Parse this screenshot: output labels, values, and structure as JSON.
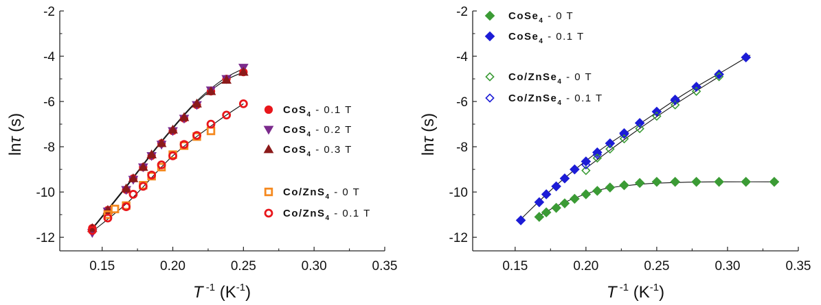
{
  "chart_data": [
    {
      "type": "scatter",
      "panel": "left",
      "xlabel": "T -1 (K-1)",
      "ylabel": "lnτ (s)",
      "xlim": [
        0.12,
        0.35
      ],
      "ylim": [
        -12.6,
        -2
      ],
      "xticks": [
        "0.15",
        "0.20",
        "0.25",
        "0.30",
        "0.35"
      ],
      "yticks": [
        "-12",
        "-10",
        "-8",
        "-6",
        "-4",
        "-2"
      ],
      "grid": false,
      "legend_position": "right",
      "series": [
        {
          "name": "CoS4 - 0.1 T",
          "color": "#e8161b",
          "marker": "circle",
          "filled": true,
          "x": [
            0.143,
            0.154,
            0.167,
            0.172,
            0.179,
            0.185,
            0.192,
            0.2,
            0.208,
            0.217,
            0.227,
            0.238,
            0.25
          ],
          "y": [
            -11.6,
            -10.8,
            -9.9,
            -9.4,
            -8.9,
            -8.4,
            -7.85,
            -7.3,
            -6.75,
            -6.15,
            -5.55,
            -5.0,
            -4.7
          ]
        },
        {
          "name": "CoS4 - 0.2 T",
          "color": "#7b2a8c",
          "marker": "triangle-down",
          "filled": true,
          "x": [
            0.143,
            0.154,
            0.167,
            0.172,
            0.179,
            0.185,
            0.192,
            0.2,
            0.208,
            0.217,
            0.227,
            0.238,
            0.25
          ],
          "y": [
            -11.8,
            -10.85,
            -9.9,
            -9.45,
            -8.9,
            -8.4,
            -7.9,
            -7.3,
            -6.75,
            -6.15,
            -5.5,
            -5.0,
            -4.5
          ]
        },
        {
          "name": "CoS4 - 0.3 T",
          "color": "#8b1a1a",
          "marker": "triangle-up",
          "filled": true,
          "x": [
            0.143,
            0.154,
            0.167,
            0.172,
            0.179,
            0.185,
            0.192,
            0.2,
            0.208,
            0.217,
            0.227,
            0.238,
            0.25
          ],
          "y": [
            -11.6,
            -10.8,
            -9.85,
            -9.4,
            -8.9,
            -8.35,
            -7.85,
            -7.25,
            -6.7,
            -6.1,
            -5.55,
            -5.05,
            -4.7
          ]
        },
        {
          "name": "Co/ZnS4 - 0 T",
          "color": "#f5891f",
          "marker": "square",
          "filled": false,
          "x": [
            0.154,
            0.159,
            0.167,
            0.179,
            0.185,
            0.192,
            0.2,
            0.208,
            0.217,
            0.227
          ],
          "y": [
            -11.0,
            -10.75,
            -10.6,
            -9.7,
            -9.3,
            -8.9,
            -8.35,
            -7.95,
            -7.55,
            -7.3
          ]
        },
        {
          "name": "Co/ZnS4 - 0.1 T",
          "color": "#e8161b",
          "marker": "circle",
          "filled": false,
          "x": [
            0.143,
            0.154,
            0.167,
            0.172,
            0.179,
            0.185,
            0.192,
            0.2,
            0.208,
            0.217,
            0.227,
            0.238,
            0.25
          ],
          "y": [
            -11.7,
            -11.15,
            -10.65,
            -10.1,
            -9.75,
            -9.25,
            -8.8,
            -8.4,
            -7.9,
            -7.5,
            -7.0,
            -6.6,
            -6.1
          ]
        }
      ],
      "fit_curves": [
        {
          "x": [
            0.143,
            0.165,
            0.19,
            0.215,
            0.235,
            0.25
          ],
          "y": [
            -11.65,
            -9.95,
            -7.95,
            -6.15,
            -5.15,
            -4.7
          ]
        },
        {
          "x": [
            0.143,
            0.165,
            0.19,
            0.215,
            0.235,
            0.25
          ],
          "y": [
            -11.6,
            -9.9,
            -7.9,
            -6.1,
            -5.05,
            -4.55
          ]
        },
        {
          "x": [
            0.143,
            0.17,
            0.2,
            0.23,
            0.25
          ],
          "y": [
            -11.75,
            -10.35,
            -8.4,
            -6.95,
            -6.1
          ]
        }
      ],
      "legend": [
        {
          "base": "CoS",
          "sub": "4",
          "rest": " - 0.1 T"
        },
        {
          "base": "CoS",
          "sub": "4",
          "rest": " - 0.2 T"
        },
        {
          "base": "CoS",
          "sub": "4",
          "rest": " - 0.3 T"
        },
        {
          "base": "Co/ZnS",
          "sub": "4",
          "rest": " - 0 T"
        },
        {
          "base": "Co/ZnS",
          "sub": "4",
          "rest": " - 0.1 T"
        }
      ]
    },
    {
      "type": "scatter",
      "panel": "right",
      "xlabel": "T -1 (K-1)",
      "ylabel": "lnτ (s)",
      "xlim": [
        0.12,
        0.35
      ],
      "ylim": [
        -12.6,
        -2
      ],
      "xticks": [
        "0.15",
        "0.20",
        "0.25",
        "0.30",
        "0.35"
      ],
      "yticks": [
        "-12",
        "-10",
        "-8",
        "-6",
        "-4",
        "-2"
      ],
      "grid": false,
      "legend_position": "top-left",
      "series": [
        {
          "name": "CoSe4 - 0 T",
          "color": "#3b9b35",
          "marker": "diamond",
          "filled": true,
          "x": [
            0.167,
            0.172,
            0.179,
            0.185,
            0.192,
            0.2,
            0.208,
            0.217,
            0.227,
            0.238,
            0.25,
            0.263,
            0.278,
            0.294,
            0.313,
            0.333
          ],
          "y": [
            -11.1,
            -10.9,
            -10.7,
            -10.5,
            -10.3,
            -10.1,
            -9.95,
            -9.8,
            -9.7,
            -9.6,
            -9.55,
            -9.55,
            -9.55,
            -9.55,
            -9.55,
            -9.55
          ]
        },
        {
          "name": "CoSe4 - 0.1 T",
          "color": "#1c1cd6",
          "marker": "diamond",
          "filled": true,
          "x": [
            0.154,
            0.167,
            0.172,
            0.179,
            0.185,
            0.192,
            0.2,
            0.208,
            0.217,
            0.227,
            0.238,
            0.25,
            0.263,
            0.278,
            0.294,
            0.313
          ],
          "y": [
            -11.25,
            -10.45,
            -10.1,
            -9.75,
            -9.4,
            -9.0,
            -8.65,
            -8.25,
            -7.85,
            -7.4,
            -6.95,
            -6.45,
            -5.95,
            -5.35,
            -4.8,
            -4.05
          ]
        },
        {
          "name": "Co/ZnSe4 - 0 T",
          "color": "#3b9b35",
          "marker": "diamond",
          "filled": false,
          "x": [
            0.2,
            0.208,
            0.217,
            0.227,
            0.238,
            0.25,
            0.263,
            0.278,
            0.294
          ],
          "y": [
            -9.05,
            -8.5,
            -8.1,
            -7.65,
            -7.2,
            -6.65,
            -6.15,
            -5.55,
            -4.9
          ]
        },
        {
          "name": "Co/ZnSe4 - 0.1 T",
          "color": "#1c1cd6",
          "marker": "diamond",
          "filled": false,
          "x": [
            0.2,
            0.208,
            0.217,
            0.227,
            0.238,
            0.25,
            0.263,
            0.278,
            0.294
          ],
          "y": [
            -8.8,
            -8.35,
            -7.85,
            -7.45,
            -6.95,
            -6.45,
            -5.9,
            -5.35,
            -4.8
          ]
        }
      ],
      "fit_curves": [
        {
          "x": [
            0.154,
            0.18,
            0.21,
            0.24,
            0.27,
            0.3,
            0.316
          ],
          "y": [
            -11.2,
            -9.65,
            -8.15,
            -6.9,
            -5.65,
            -4.55,
            -3.95
          ]
        },
        {
          "x": [
            0.2,
            0.23,
            0.26,
            0.294
          ],
          "y": [
            -8.95,
            -7.55,
            -6.25,
            -4.9
          ]
        },
        {
          "x": [
            0.167,
            0.185,
            0.21,
            0.24,
            0.27,
            0.3,
            0.333
          ],
          "y": [
            -11.05,
            -10.45,
            -9.9,
            -9.65,
            -9.57,
            -9.55,
            -9.55
          ]
        }
      ],
      "legend": [
        {
          "base": "CoSe",
          "sub": "4",
          "rest": " - 0 T"
        },
        {
          "base": "CoSe",
          "sub": "4",
          "rest": " - 0.1 T"
        },
        {
          "base": "Co/ZnSe",
          "sub": "4",
          "rest": " - 0 T"
        },
        {
          "base": "Co/ZnSe",
          "sub": "4",
          "rest": " - 0.1 T"
        }
      ]
    }
  ]
}
